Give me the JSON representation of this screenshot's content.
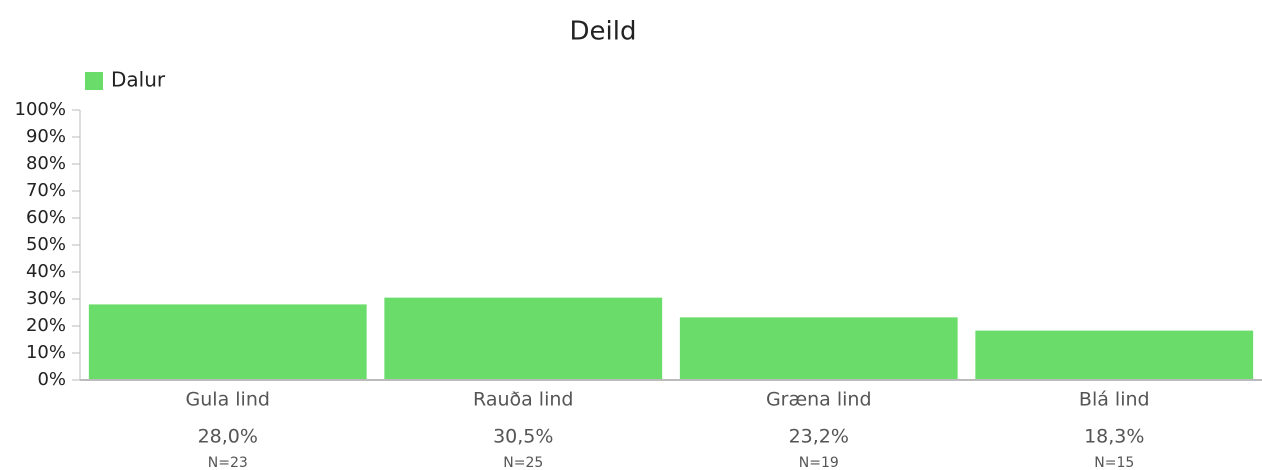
{
  "chart_data": {
    "type": "bar",
    "title": "Deild",
    "series": [
      {
        "name": "Dalur",
        "color": "#6adc6a",
        "values": [
          28.0,
          30.5,
          23.2,
          18.3
        ],
        "value_labels": [
          "28,0%",
          "30,5%",
          "23,2%",
          "18,3%"
        ]
      }
    ],
    "categories": [
      "Gula lind",
      "Rauða lind",
      "Græna lind",
      "Blá lind"
    ],
    "n_labels": [
      "N=23",
      "N=25",
      "N=19",
      "N=15"
    ],
    "ylim": [
      0,
      100
    ],
    "yticks": [
      {
        "value": 0,
        "label": "0%"
      },
      {
        "value": 10,
        "label": "10%"
      },
      {
        "value": 20,
        "label": "20%"
      },
      {
        "value": 30,
        "label": "30%"
      },
      {
        "value": 40,
        "label": "40%"
      },
      {
        "value": 50,
        "label": "50%"
      },
      {
        "value": 60,
        "label": "60%"
      },
      {
        "value": 70,
        "label": "70%"
      },
      {
        "value": 80,
        "label": "80%"
      },
      {
        "value": 90,
        "label": "90%"
      },
      {
        "value": 100,
        "label": "100%"
      }
    ],
    "legend": "top-left"
  }
}
